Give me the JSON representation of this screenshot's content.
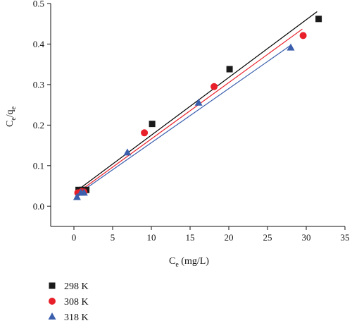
{
  "chart_data": {
    "type": "scatter",
    "title": "",
    "xlabel": {
      "main": "C",
      "sub": "e",
      "rest": " (mg/L)"
    },
    "ylabel": {
      "main1": "C",
      "sub1": "e",
      "slash": "/q",
      "sub2": "e"
    },
    "xlim": [
      -3,
      35
    ],
    "ylim": [
      -0.05,
      0.5
    ],
    "xticks": [
      0,
      5,
      10,
      15,
      20,
      25,
      30,
      35
    ],
    "yticks": [
      0.0,
      0.1,
      0.2,
      0.3,
      0.4,
      0.5
    ],
    "xtick_labels": [
      "0",
      "5",
      "10",
      "15",
      "20",
      "25",
      "30",
      "35"
    ],
    "ytick_labels": [
      "0.0",
      "0.1",
      "0.2",
      "0.3",
      "0.4",
      "0.5"
    ],
    "grid": false,
    "legend_position": "bottom-left-below-plot",
    "series": [
      {
        "name": "298 K",
        "marker": "square",
        "color": "#1a1a1a",
        "line_color": "#000000",
        "x": [
          0.6,
          1.1,
          1.6,
          10.1,
          20.1,
          31.6
        ],
        "y": [
          0.04,
          0.04,
          0.04,
          0.203,
          0.338,
          0.462
        ],
        "fit": {
          "x": [
            0.3,
            31.4
          ],
          "y": [
            0.037,
            0.48
          ]
        }
      },
      {
        "name": "308 K",
        "marker": "circle",
        "color": "#e8202a",
        "line_color": "#e8202a",
        "x": [
          0.5,
          1.0,
          1.3,
          9.1,
          18.1,
          29.6
        ],
        "y": [
          0.033,
          0.036,
          0.035,
          0.181,
          0.295,
          0.421
        ],
        "fit": {
          "x": [
            0.3,
            29.5
          ],
          "y": [
            0.031,
            0.437
          ]
        }
      },
      {
        "name": "318 K",
        "marker": "triangle",
        "color": "#3b5fad",
        "line_color": "#3b5fad",
        "x": [
          0.4,
          0.9,
          1.3,
          6.9,
          16.1,
          28.0
        ],
        "y": [
          0.022,
          0.033,
          0.033,
          0.132,
          0.255,
          0.391
        ],
        "fit": {
          "x": [
            0.3,
            28.0
          ],
          "y": [
            0.027,
            0.397
          ]
        }
      }
    ]
  }
}
